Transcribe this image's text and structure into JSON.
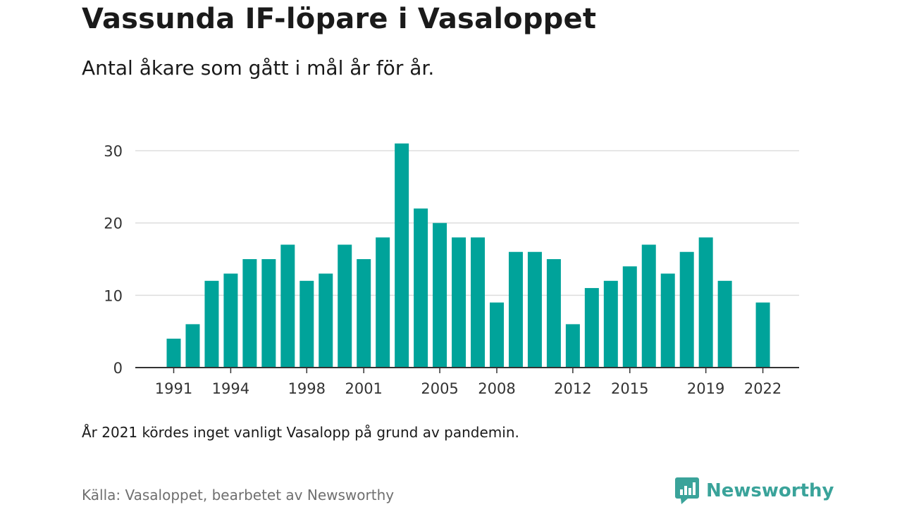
{
  "title": "Vassunda IF-löpare i Vasaloppet",
  "subtitle": "Antal åkare som gått i mål år för år.",
  "note": "År 2021 kördes inget vanligt Vasalopp på grund av pandemin.",
  "source": "Källa: Vasaloppet, bearbetet av Newsworthy",
  "brand": {
    "name": "Newsworthy",
    "icon": "newsworthy-logo-icon",
    "color": "#3aa39a"
  },
  "chart_data": {
    "type": "bar",
    "bar_color": "#00a39a",
    "grid": true,
    "ylim": [
      0,
      30
    ],
    "yticks": [
      0,
      10,
      20,
      30
    ],
    "xtick_labels": [
      "1991",
      "1994",
      "1998",
      "2001",
      "2005",
      "2008",
      "2012",
      "2015",
      "2019",
      "2022"
    ],
    "categories": [
      "1991",
      "1992",
      "1993",
      "1994",
      "1995",
      "1996",
      "1997",
      "1998",
      "1999",
      "2000",
      "2001",
      "2002",
      "2003",
      "2004",
      "2005",
      "2006",
      "2007",
      "2008",
      "2009",
      "2010",
      "2011",
      "2012",
      "2013",
      "2014",
      "2015",
      "2016",
      "2017",
      "2018",
      "2019",
      "2020",
      "2021",
      "2022"
    ],
    "values": [
      4,
      6,
      12,
      13,
      15,
      15,
      17,
      12,
      13,
      17,
      15,
      18,
      31,
      22,
      20,
      18,
      18,
      9,
      16,
      16,
      15,
      6,
      11,
      12,
      14,
      17,
      13,
      16,
      18,
      12,
      null,
      9
    ]
  }
}
